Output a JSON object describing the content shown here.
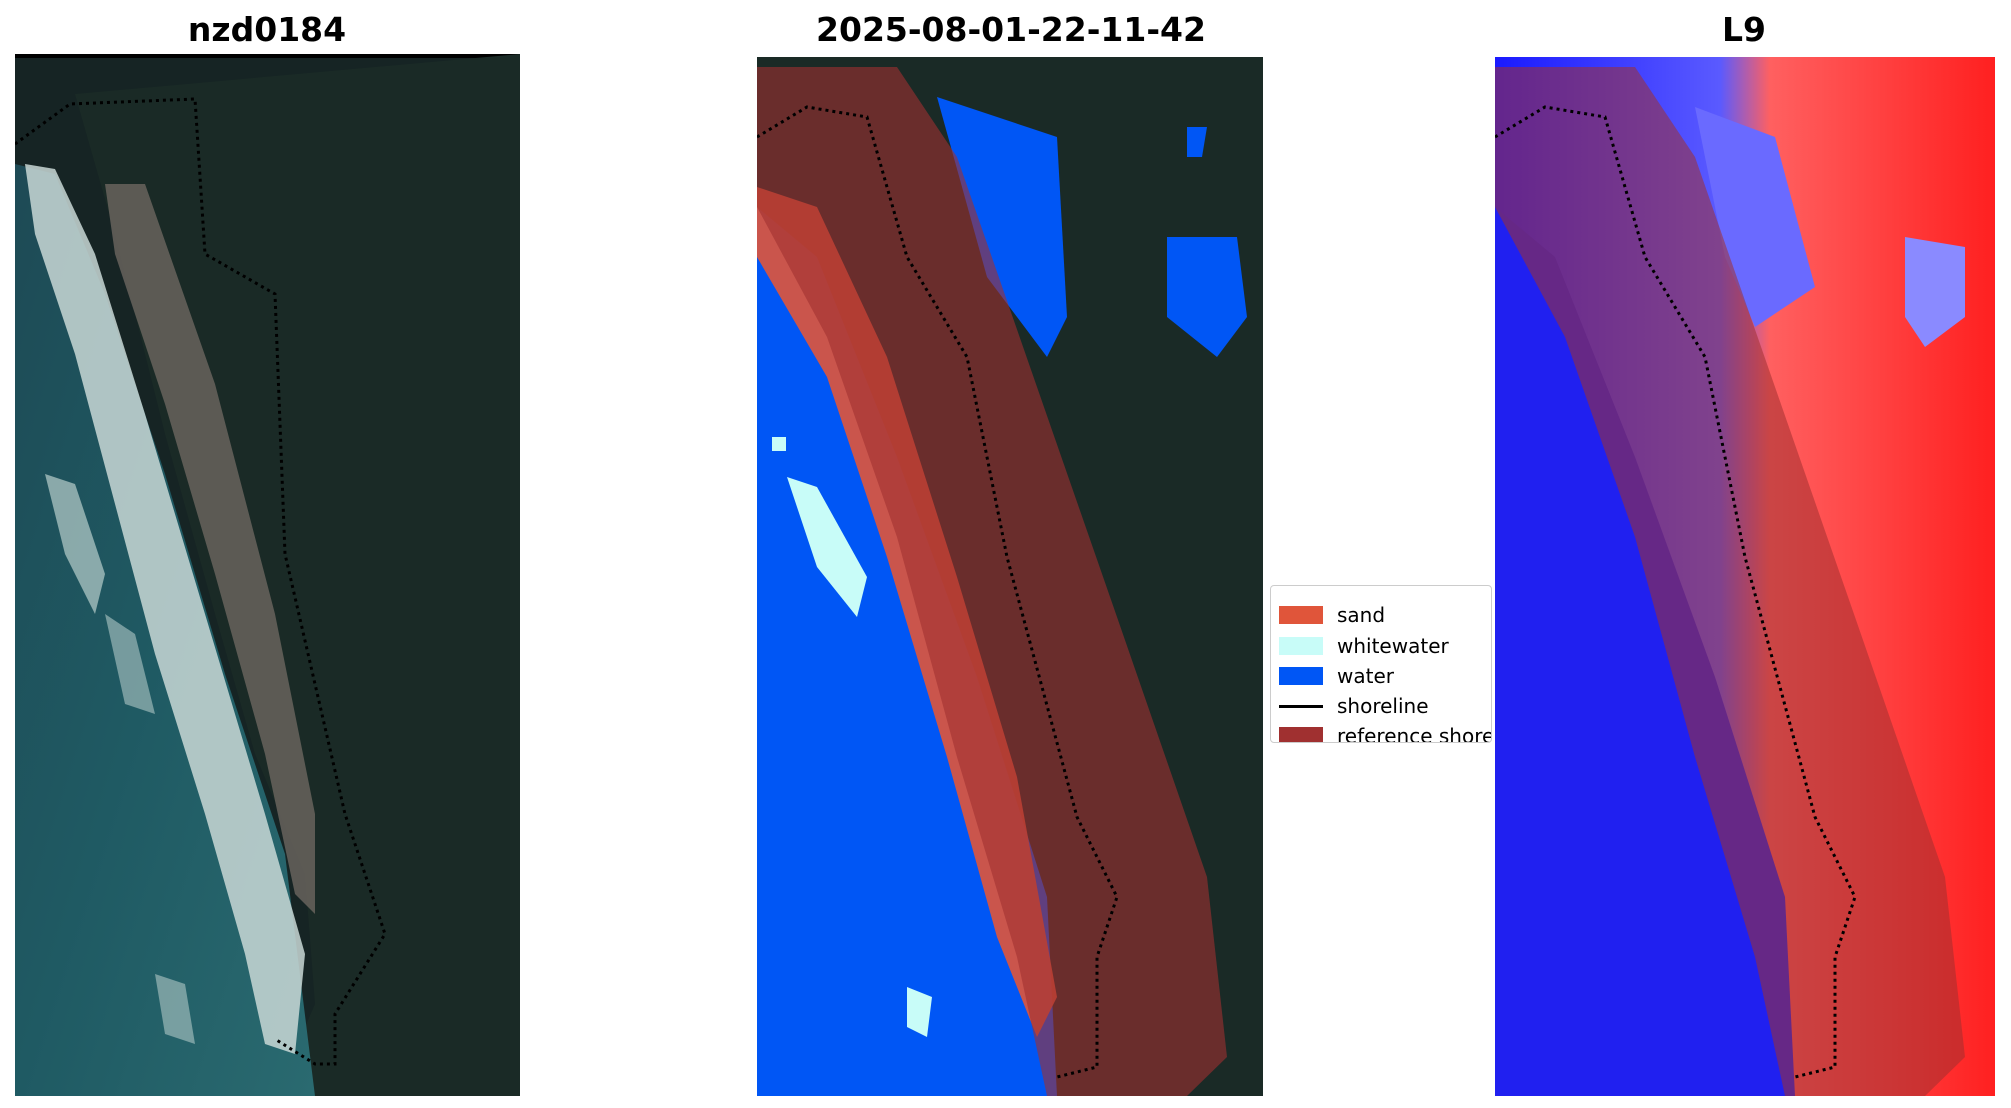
{
  "panels": [
    {
      "title": "nzd0184"
    },
    {
      "title": "2025-08-01-22-11-42"
    },
    {
      "title": "L9"
    }
  ],
  "legend": {
    "items": [
      {
        "label": "sand",
        "color": "#e0553a"
      },
      {
        "label": "whitewater",
        "color": "#c8fcf8"
      },
      {
        "label": "water",
        "color": "#0056f5"
      },
      {
        "label": "shoreline",
        "color": "#000000"
      },
      {
        "label": "reference shoreline buffer",
        "color": "#a03030"
      }
    ]
  }
}
